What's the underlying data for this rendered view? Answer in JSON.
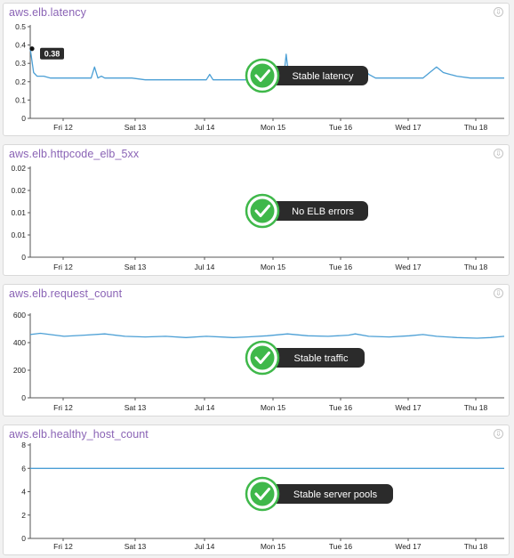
{
  "chart_data": [
    {
      "type": "line",
      "title": "aws.elb.latency",
      "x_ticks": [
        "Fri 12",
        "Sat 13",
        "Jul 14",
        "Mon 15",
        "Tue 16",
        "Wed 17",
        "Thu 18"
      ],
      "yticks": [
        "0",
        "0.1",
        "0.2",
        "0.3",
        "0.4",
        "0.5"
      ],
      "ylim": [
        0,
        0.5
      ],
      "x_range": [
        0,
        7
      ],
      "color": "#4b9fd5",
      "series": [
        {
          "x": [
            0,
            0.05,
            0.1,
            0.2,
            0.3,
            0.4,
            0.5,
            0.6,
            0.7,
            0.8,
            0.9,
            0.95,
            1.0,
            1.05,
            1.1,
            1.2,
            1.5,
            1.7,
            2.0,
            2.3,
            2.6,
            2.65,
            2.7,
            3.0,
            3.5,
            3.74,
            3.78,
            3.82,
            4.0,
            4.5,
            4.8,
            4.85,
            4.9,
            4.95,
            5.0,
            5.1,
            5.4,
            5.8,
            5.9,
            6.0,
            6.1,
            6.2,
            6.3,
            6.5,
            7.0
          ],
          "values": [
            0.38,
            0.25,
            0.23,
            0.23,
            0.22,
            0.22,
            0.22,
            0.22,
            0.22,
            0.22,
            0.22,
            0.28,
            0.22,
            0.23,
            0.22,
            0.22,
            0.22,
            0.21,
            0.21,
            0.21,
            0.21,
            0.24,
            0.21,
            0.21,
            0.21,
            0.21,
            0.35,
            0.22,
            0.22,
            0.22,
            0.22,
            0.26,
            0.25,
            0.26,
            0.24,
            0.22,
            0.22,
            0.22,
            0.25,
            0.28,
            0.25,
            0.24,
            0.23,
            0.22,
            0.22
          ]
        }
      ],
      "tooltip_value": "0.38",
      "annotation": "Stable latency"
    },
    {
      "type": "line",
      "title": "aws.elb.httpcode_elb_5xx",
      "x_ticks": [
        "Fri 12",
        "Sat 13",
        "Jul 14",
        "Mon 15",
        "Tue 16",
        "Wed 17",
        "Thu 18"
      ],
      "yticks": [
        "0",
        "0.01",
        "0.01",
        "0.02",
        "0.02"
      ],
      "ylim": [
        0,
        0.02
      ],
      "x_range": [
        0,
        7
      ],
      "series": [],
      "annotation": "No ELB errors"
    },
    {
      "type": "line",
      "title": "aws.elb.request_count",
      "x_ticks": [
        "Fri 12",
        "Sat 13",
        "Jul 14",
        "Mon 15",
        "Tue 16",
        "Wed 17",
        "Thu 18"
      ],
      "yticks": [
        "0",
        "200",
        "400",
        "600"
      ],
      "ylim": [
        0,
        680
      ],
      "x_range": [
        0,
        7
      ],
      "color": "#4b9fd5",
      "series": [
        {
          "x": [
            0,
            0.15,
            0.5,
            0.8,
            1.1,
            1.4,
            1.7,
            2.0,
            2.3,
            2.6,
            3.0,
            3.2,
            3.5,
            3.8,
            4.1,
            4.4,
            4.7,
            4.8,
            5.0,
            5.3,
            5.6,
            5.8,
            6.0,
            6.3,
            6.6,
            6.8,
            7.0
          ],
          "values": [
            520,
            530,
            505,
            515,
            525,
            505,
            500,
            505,
            495,
            505,
            495,
            500,
            510,
            525,
            510,
            505,
            515,
            525,
            505,
            500,
            510,
            520,
            505,
            495,
            490,
            495,
            505
          ]
        }
      ],
      "annotation": "Stable traffic"
    },
    {
      "type": "line",
      "title": "aws.elb.healthy_host_count",
      "x_ticks": [
        "Fri 12",
        "Sat 13",
        "Jul 14",
        "Mon 15",
        "Tue 16",
        "Wed 17",
        "Thu 18"
      ],
      "yticks": [
        "0",
        "2",
        "4",
        "6",
        "8"
      ],
      "ylim": [
        0,
        8
      ],
      "x_range": [
        0,
        7
      ],
      "color": "#4b9fd5",
      "series": [
        {
          "x": [
            0,
            7
          ],
          "values": [
            6,
            6
          ]
        }
      ],
      "annotation": "Stable server pools"
    }
  ],
  "colors": {
    "accent": "#4b9fd5",
    "title": "#8a63b5",
    "check_green": "#3fb84a",
    "badge_bg": "#2b2b2b"
  }
}
